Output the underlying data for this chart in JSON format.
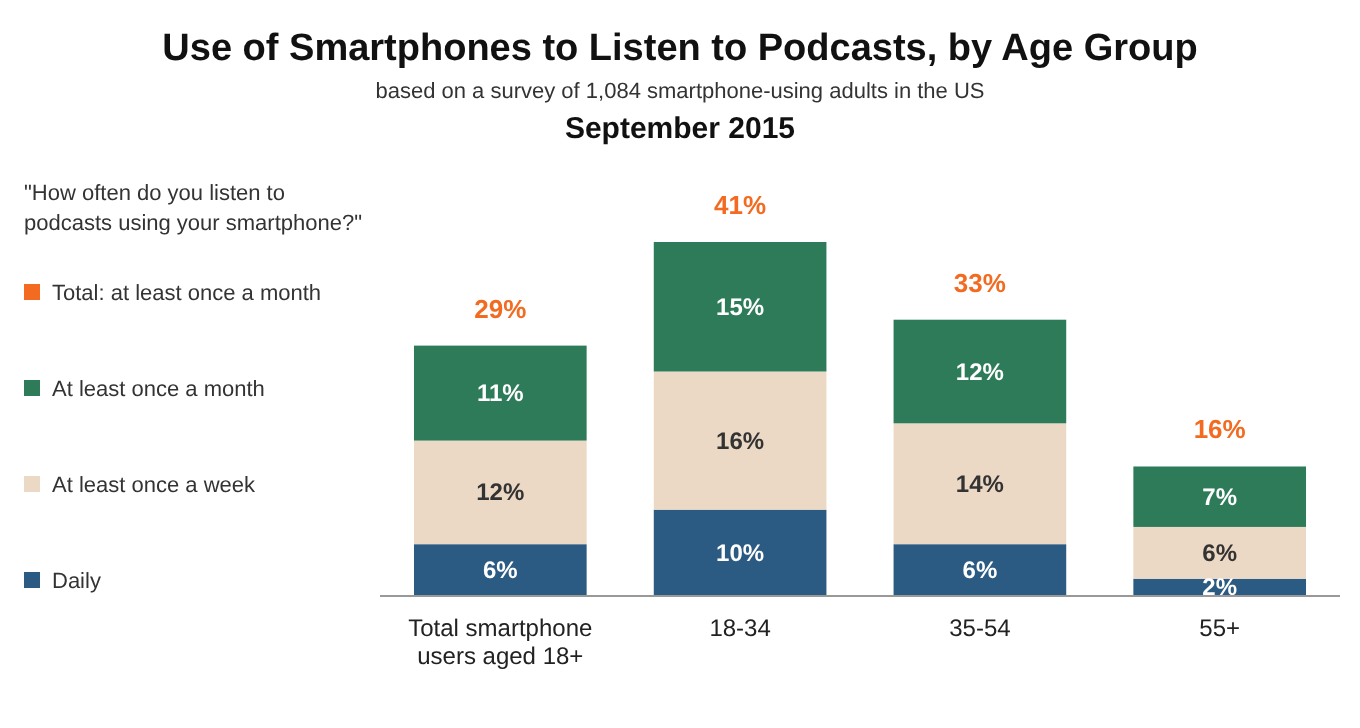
{
  "chart_data": {
    "type": "bar",
    "stacked": true,
    "title": "Use of Smartphones to Listen to Podcasts, by Age Group",
    "subtitle": "based on a survey of 1,084 smartphone-using adults in the US",
    "annotations": [
      "September 2015",
      "Total: at least once a month"
    ],
    "legend_title": "\"How often do you listen to podcasts using your smartphone?\"",
    "legend": "left",
    "categories": [
      "Total smartphone users aged 18+",
      "18-34",
      "35-54",
      "55+"
    ],
    "series": [
      {
        "name": "Daily",
        "color": "#2b5a82",
        "values": [
          6,
          10,
          6,
          2
        ],
        "value_labels": [
          "6%",
          "10%",
          "6%",
          "2%"
        ]
      },
      {
        "name": "At least once a week",
        "color": "#ecd9c5",
        "values": [
          12,
          16,
          14,
          6
        ],
        "value_labels": [
          "12%",
          "16%",
          "14%",
          "6%"
        ]
      },
      {
        "name": "At least once a month",
        "color": "#2e7b5a",
        "values": [
          11,
          15,
          12,
          7
        ],
        "value_labels": [
          "11%",
          "15%",
          "12%",
          "7%"
        ]
      }
    ],
    "totals": [
      "29%",
      "41%",
      "33%",
      "16%"
    ]
  }
}
